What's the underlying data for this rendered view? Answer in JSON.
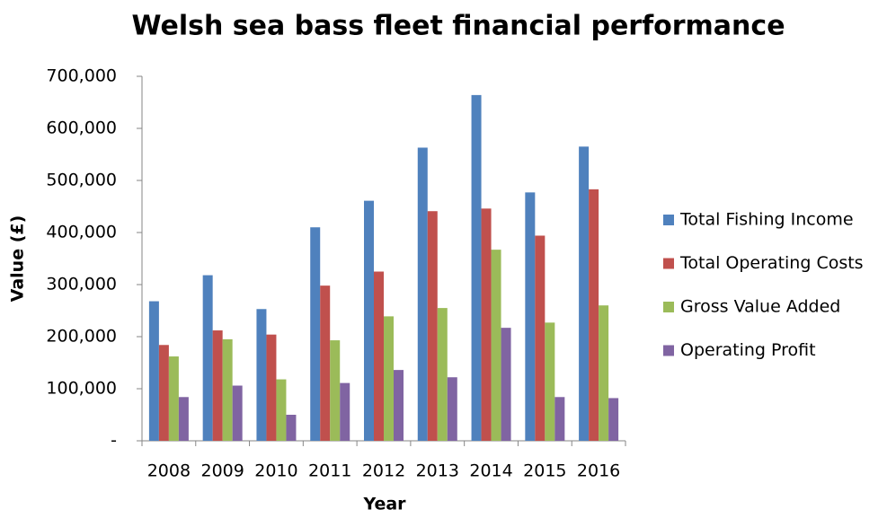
{
  "chart_data": {
    "type": "bar",
    "title": "Welsh sea bass fleet financial performance",
    "x_label": "Year",
    "y_label": "Value (£)",
    "categories": [
      "2008",
      "2009",
      "2010",
      "2011",
      "2012",
      "2013",
      "2014",
      "2015",
      "2016"
    ],
    "series": [
      {
        "name": "Total Fishing Income",
        "color": "#4f81bd",
        "values": [
          268000,
          318000,
          253000,
          410000,
          461000,
          563000,
          664000,
          477000,
          565000
        ]
      },
      {
        "name": "Total Operating Costs",
        "color": "#c0504d",
        "values": [
          184000,
          212000,
          204000,
          298000,
          325000,
          441000,
          446000,
          394000,
          483000
        ]
      },
      {
        "name": "Gross Value Added",
        "color": "#9bbb59",
        "values": [
          162000,
          195000,
          118000,
          193000,
          239000,
          255000,
          367000,
          227000,
          260000
        ]
      },
      {
        "name": "Operating Profit",
        "color": "#8064a2",
        "values": [
          84000,
          106000,
          50000,
          111000,
          136000,
          122000,
          217000,
          84000,
          82000
        ]
      }
    ],
    "ylim": [
      0,
      700000
    ],
    "yticks": [
      {
        "value": 0,
        "label": "-"
      },
      {
        "value": 100000,
        "label": "100,000"
      },
      {
        "value": 200000,
        "label": "200,000"
      },
      {
        "value": 300000,
        "label": "300,000"
      },
      {
        "value": 400000,
        "label": "400,000"
      },
      {
        "value": 500000,
        "label": "500,000"
      },
      {
        "value": 600000,
        "label": "600,000"
      },
      {
        "value": 700000,
        "label": "700,000"
      }
    ],
    "grid": false,
    "legend": "right"
  }
}
